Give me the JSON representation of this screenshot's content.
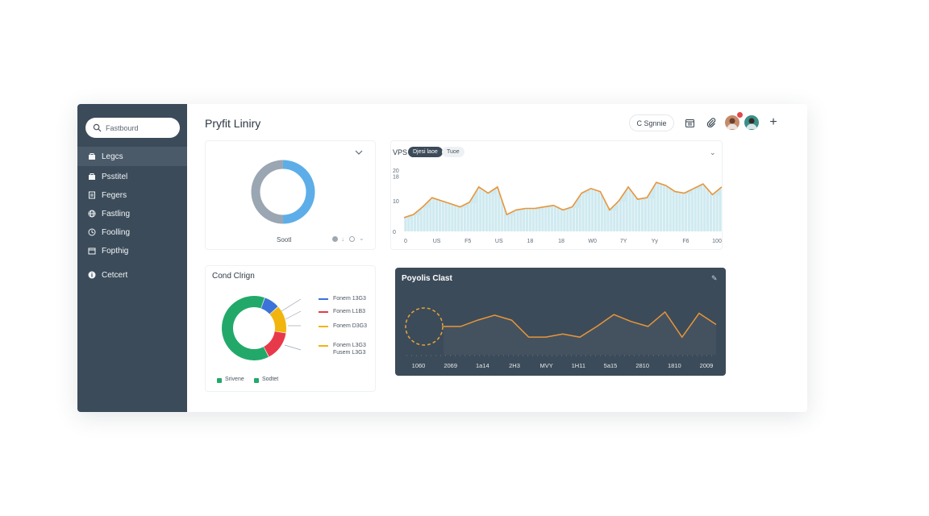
{
  "sidebar": {
    "search_placeholder": "Fastbourd",
    "items": [
      {
        "label": "Legcs",
        "icon": "bag-icon",
        "active": true
      },
      {
        "label": "Psstitel",
        "icon": "bag-icon"
      },
      {
        "label": "Fegers",
        "icon": "document-icon"
      },
      {
        "label": "Fastling",
        "icon": "globe-icon"
      },
      {
        "label": "Foolling",
        "icon": "clock-icon"
      },
      {
        "label": "Fopthig",
        "icon": "wallet-icon"
      },
      {
        "label": "Cetcert",
        "icon": "info-icon"
      }
    ]
  },
  "header": {
    "title": "Pryfit Liniry",
    "action_button": "C Sgnnie",
    "icons": [
      "calendar-icon",
      "paperclip-icon",
      "plus-icon"
    ]
  },
  "donut_card": {
    "label": "Sootl",
    "slices": [
      {
        "value": 50,
        "color": "#5daee8"
      },
      {
        "value": 50,
        "color": "#9aa6b1"
      }
    ]
  },
  "vps_card": {
    "title": "VPS",
    "pill_primary": "Djesi laoe",
    "pill_secondary": "Tuoe",
    "chart_data": {
      "type": "area",
      "ylim": [
        0,
        20
      ],
      "yticks": [
        "0",
        "10",
        "18",
        "20"
      ],
      "xticks": [
        "0",
        "US",
        "F5",
        "US",
        "18",
        "18",
        "W0",
        "7Y",
        "Yy",
        "F6",
        "100"
      ],
      "x": [
        0,
        1,
        2,
        3,
        4,
        5,
        6,
        7,
        8,
        9,
        10,
        11,
        12,
        13,
        14,
        15,
        16,
        17,
        18,
        19,
        20,
        21,
        22,
        23,
        24,
        25,
        26,
        27,
        28,
        29,
        30,
        31,
        32,
        33,
        34
      ],
      "values": [
        4.5,
        5.5,
        8,
        11,
        10,
        9,
        8,
        9.5,
        14.5,
        12.5,
        14.5,
        5.5,
        7,
        7.5,
        7.5,
        8,
        8.5,
        7,
        8,
        12.5,
        14,
        13,
        7,
        10,
        14.5,
        10.5,
        11,
        16,
        15,
        13,
        12.5,
        14,
        15.5,
        12,
        14.5
      ],
      "line_color": "#e8953a",
      "fill_color": "#cfeaf0"
    }
  },
  "ring_card": {
    "title": "Cond Clrign",
    "chart_data": {
      "type": "pie",
      "slices": [
        {
          "value": 8,
          "color": "#3b73d9"
        },
        {
          "value": 14,
          "color": "#f2b50e"
        },
        {
          "value": 15,
          "color": "#e8394b"
        },
        {
          "value": 63,
          "color": "#22a96a"
        }
      ]
    },
    "legend": [
      {
        "label": "Fonem 13G3",
        "color": "#3b73d9"
      },
      {
        "label": "Fonem L1B3",
        "color": "#e8394b"
      },
      {
        "label": "Fonem D3G3",
        "color": "#f2b50e"
      },
      {
        "label": "Fonem L3G3",
        "color": "#f2b50e"
      }
    ],
    "legend_extra": "Fusem L3G3",
    "footer": [
      {
        "label": "Srivene",
        "color": "#22a96a"
      },
      {
        "label": "Sodtet",
        "color": "#22a96a"
      }
    ]
  },
  "dark_card": {
    "title": "Poyolis Clast",
    "chart_data": {
      "type": "line",
      "ylim": [
        0,
        10
      ],
      "xticks": [
        "1060",
        "2069",
        "1a14",
        "2H3",
        "MVY",
        "1H11",
        "5a15",
        "2810",
        "1810",
        "2009"
      ],
      "values": [
        4.5,
        4.5,
        5.5,
        6.3,
        5.5,
        2.8,
        2.8,
        3.3,
        2.8,
        4.5,
        6.4,
        5.3,
        4.5,
        6.8,
        2.8,
        6.6,
        4.8
      ],
      "line_color": "#e8953a"
    }
  }
}
